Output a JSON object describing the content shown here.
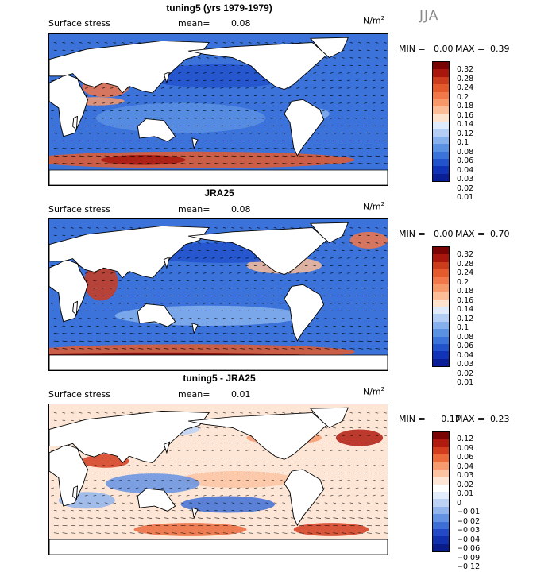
{
  "season": "JJA",
  "quantity_label": "Surface stress",
  "units": "N/m",
  "units_exp": "2",
  "panels": [
    {
      "title": "tuning5 (yrs 1979-1979)",
      "mean_label": "mean=",
      "mean_value": "0.08",
      "min_label": "MIN =",
      "min_value": "0.00",
      "max_label": "MAX =",
      "max_value": "0.39",
      "colorbar_ticks": [
        "0.32",
        "0.28",
        "0.24",
        "0.2",
        "0.18",
        "0.16",
        "0.14",
        "0.12",
        "0.1",
        "0.08",
        "0.06",
        "0.04",
        "0.03",
        "0.02",
        "0.01"
      ],
      "palette": "abs"
    },
    {
      "title": "JRA25",
      "mean_label": "mean=",
      "mean_value": "0.08",
      "min_label": "MIN =",
      "min_value": "0.00",
      "max_label": "MAX =",
      "max_value": "0.70",
      "colorbar_ticks": [
        "0.32",
        "0.28",
        "0.24",
        "0.2",
        "0.18",
        "0.16",
        "0.14",
        "0.12",
        "0.1",
        "0.08",
        "0.06",
        "0.04",
        "0.03",
        "0.02",
        "0.01"
      ],
      "palette": "abs"
    },
    {
      "title": "tuning5 - JRA25",
      "mean_label": "mean=",
      "mean_value": "0.01",
      "min_label": "MIN =",
      "min_value": "−0.17",
      "max_label": "MAX =",
      "max_value": "0.23",
      "colorbar_ticks": [
        "0.12",
        "0.09",
        "0.06",
        "0.04",
        "0.03",
        "0.02",
        "0.01",
        "0",
        "−0.01",
        "−0.02",
        "−0.03",
        "−0.04",
        "−0.06",
        "−0.09",
        "−0.12"
      ],
      "palette": "diff"
    }
  ],
  "colors": {
    "abs_palette": [
      "#7a0403",
      "#a8160e",
      "#cc3b1c",
      "#e55a2c",
      "#f2774a",
      "#f7986b",
      "#fbbd98",
      "#fde3ce",
      "#dfeafb",
      "#b3cdf5",
      "#86b0ec",
      "#5b91e3",
      "#3b73da",
      "#2352cd",
      "#1133b8",
      "#0a1e96"
    ],
    "diff_palette": [
      "#7a0403",
      "#b01a0f",
      "#d33c1f",
      "#ec6a3c",
      "#f79a70",
      "#fcc3a3",
      "#fde6d6",
      "#ffffff",
      "#e3ecfb",
      "#bcd2f5",
      "#91b4ec",
      "#6492e2",
      "#3e6fd6",
      "#2449c7",
      "#1130ae",
      "#0a1b8a"
    ],
    "land": "#ffffff",
    "coast": "#000000",
    "vector": "#000000"
  }
}
